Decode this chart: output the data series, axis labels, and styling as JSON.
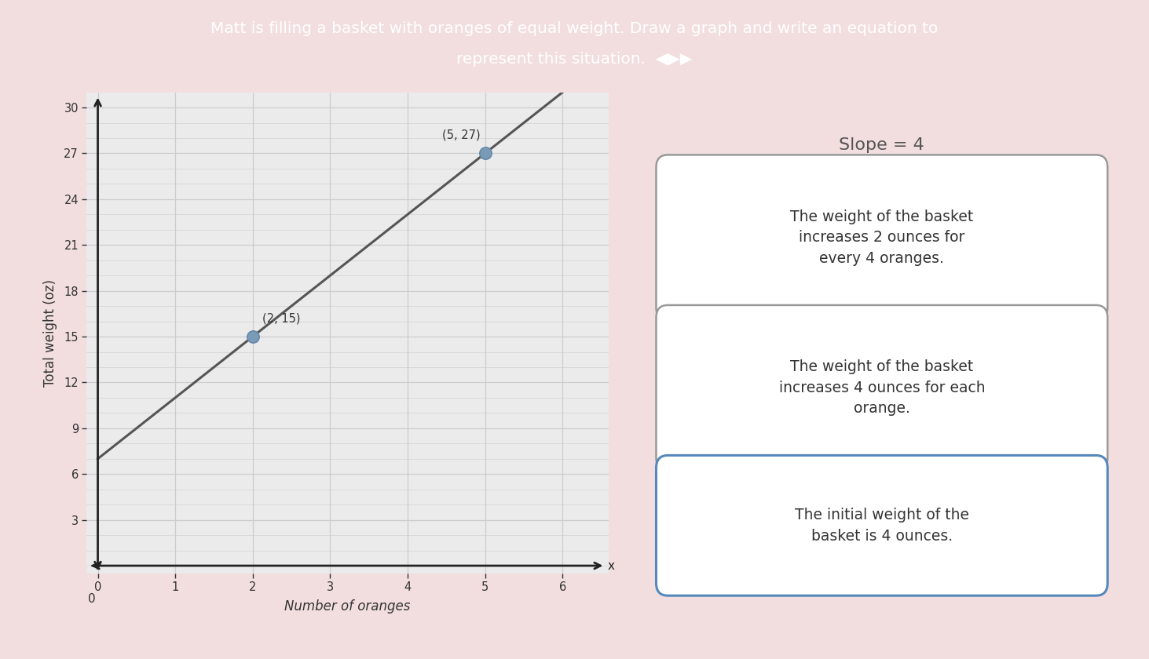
{
  "title_line1": "Matt is filling a basket with oranges of equal weight. Draw a graph and write an equation to",
  "title_line2": "represent this situation.",
  "title_bg": "#2d1b4e",
  "title_color": "#ffffff",
  "xlabel": "Number of oranges",
  "ylabel": "Total weight (oz)",
  "xlim": [
    -0.15,
    6.6
  ],
  "ylim": [
    -0.5,
    31
  ],
  "xticks": [
    0,
    1,
    2,
    3,
    4,
    5,
    6
  ],
  "yticks": [
    3,
    6,
    9,
    12,
    15,
    18,
    21,
    24,
    27,
    30
  ],
  "slope": 4,
  "intercept": 7,
  "line_color": "#555555",
  "point1": [
    2,
    15
  ],
  "point2": [
    5,
    27
  ],
  "point_color": "#7a9bb5",
  "point_label1": "(2, 15)",
  "point_label2": "(5, 27)",
  "chart_bg": "#ebebeb",
  "right_panel_bg": "#f2dede",
  "page_bg": "#f2dede",
  "slope_text": "Slope = 4",
  "box1_text": "The weight of the basket\nincreases 2 ounces for\nevery 4 oranges.",
  "box2_text": "The weight of the basket\nincreases 4 ounces for each\norange.",
  "box3_text": "The initial weight of the\nbasket is 4 ounces.",
  "box_bg": "#ffffff",
  "box_border": "#aaaaaa",
  "box3_border": "#5588bb",
  "grid_color": "#cccccc",
  "tick_color": "#333333",
  "axis_color": "#222222",
  "zero_label": "0"
}
